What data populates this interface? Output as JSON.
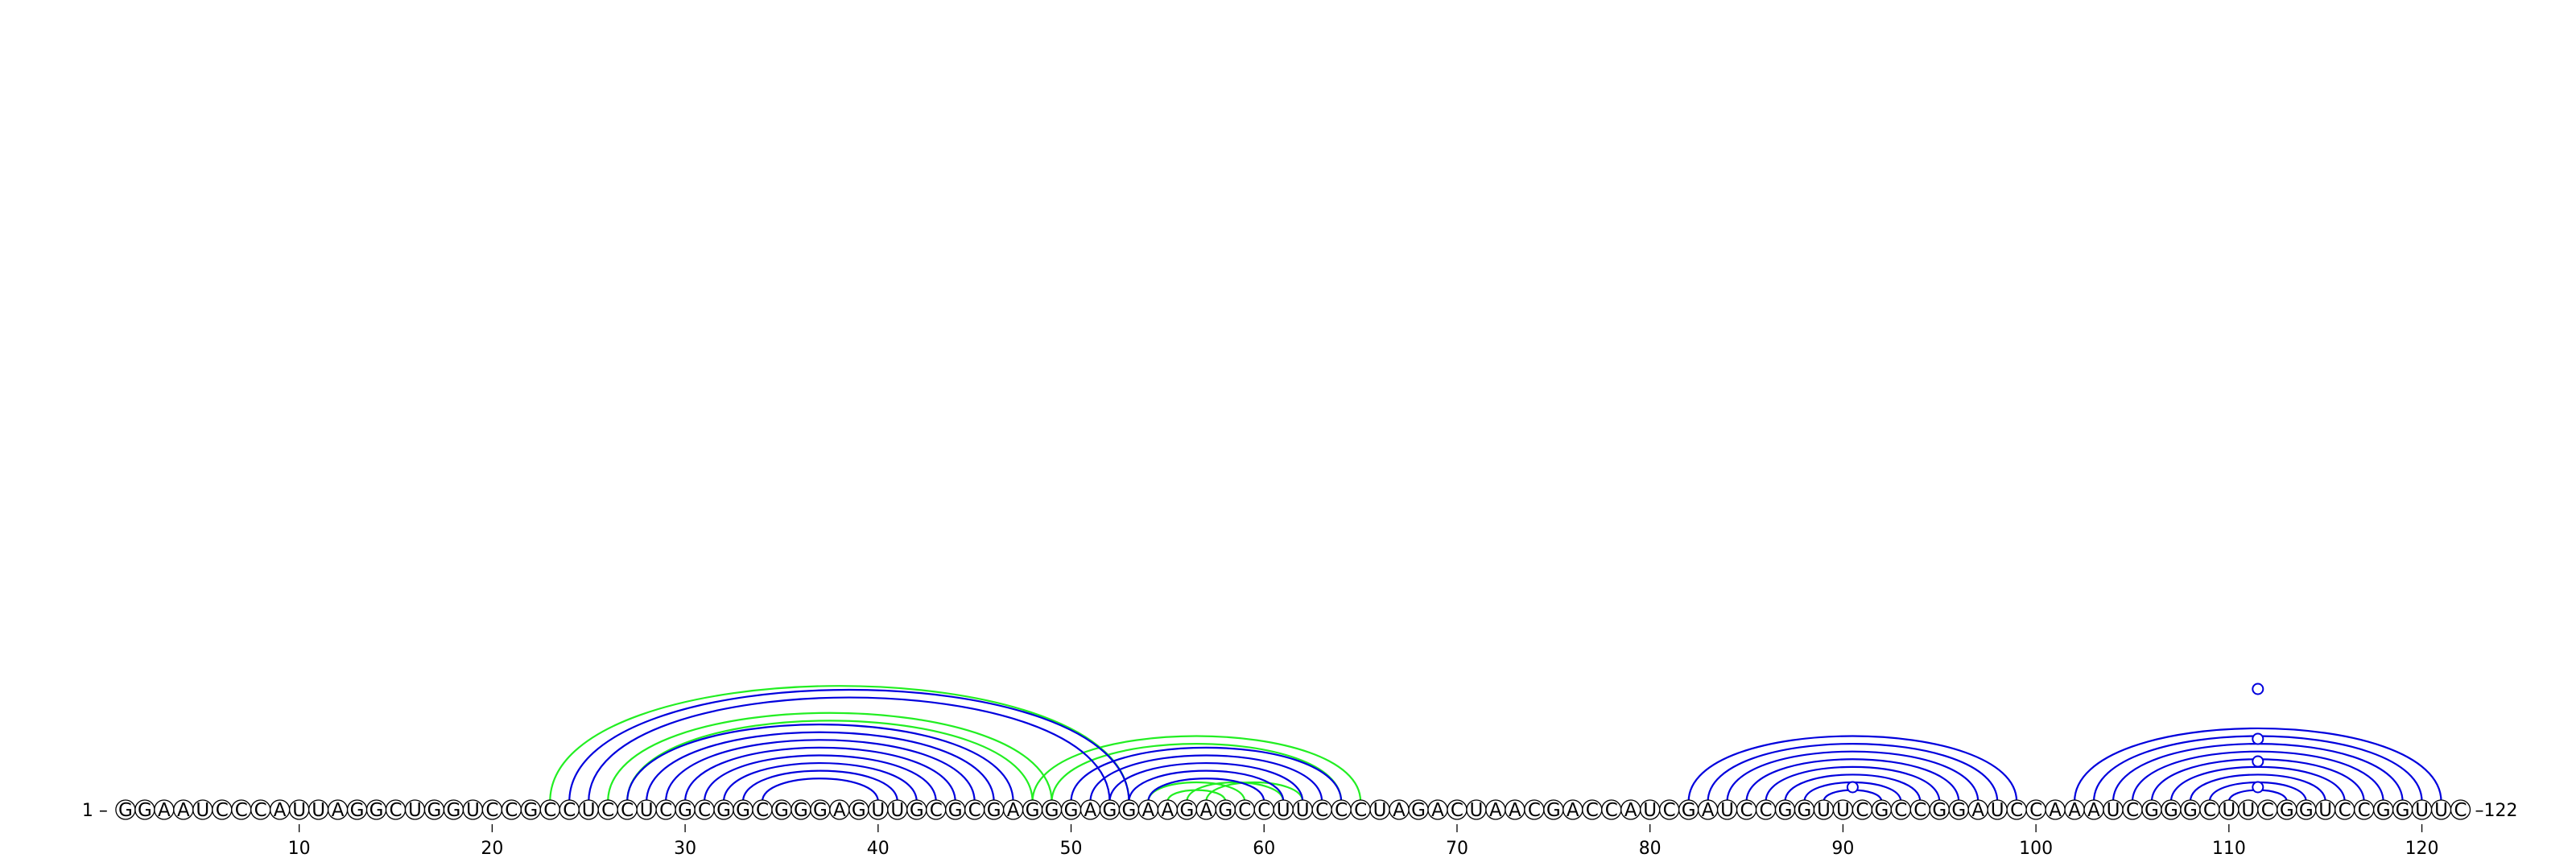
{
  "diagram": {
    "type": "rna-arc-diagram",
    "sequence": "GGAAUCCCAUUAGGCUGGUCCGCCUCCUCGCGGCGGGAGUUGCGCGAGGGAGGAAGAGCCUUCCCUAGACUAACGACCAUCGAUCCGGUUCGCCGGAUCCAAAUCGGGCUUCGGUCCGGUUC",
    "start_label": "1 –",
    "end_label": "–122",
    "ticks": [
      {
        "position": 10,
        "label": "10"
      },
      {
        "position": 20,
        "label": "20"
      },
      {
        "position": 30,
        "label": "30"
      },
      {
        "position": 40,
        "label": "40"
      },
      {
        "position": 50,
        "label": "50"
      },
      {
        "position": 60,
        "label": "60"
      },
      {
        "position": 70,
        "label": "70"
      },
      {
        "position": 80,
        "label": "80"
      },
      {
        "position": 90,
        "label": "90"
      },
      {
        "position": 100,
        "label": "100"
      },
      {
        "position": 110,
        "label": "110"
      },
      {
        "position": 120,
        "label": "120"
      }
    ],
    "colors": {
      "primary_pairs": "#0000dd",
      "alternative_pairs": "#22ee22",
      "nucleotide_fill": "#ffffff",
      "nucleotide_stroke": "#000000"
    },
    "pair_sets": [
      {
        "set": "primary",
        "color": "blue",
        "pairs": [
          [
            24,
            53
          ],
          [
            25,
            52
          ],
          [
            27,
            47
          ],
          [
            28,
            46
          ],
          [
            29,
            45
          ],
          [
            30,
            44
          ],
          [
            31,
            43
          ],
          [
            32,
            42
          ],
          [
            33,
            41
          ],
          [
            34,
            40
          ],
          [
            50,
            64
          ],
          [
            51,
            63
          ],
          [
            52,
            62
          ],
          [
            53,
            61
          ],
          [
            54,
            60
          ],
          [
            82,
            99
          ],
          [
            83,
            98
          ],
          [
            84,
            97
          ],
          [
            85,
            96
          ],
          [
            86,
            95
          ],
          [
            87,
            94
          ],
          [
            88,
            93
          ],
          [
            89,
            92
          ],
          [
            102,
            121
          ],
          [
            103,
            120
          ],
          [
            104,
            119
          ],
          [
            105,
            118
          ],
          [
            106,
            117
          ],
          [
            107,
            116
          ],
          [
            108,
            115
          ],
          [
            109,
            114
          ],
          [
            110,
            113
          ]
        ]
      },
      {
        "set": "alternative",
        "color": "green",
        "pairs": [
          [
            23,
            53
          ],
          [
            26,
            49
          ],
          [
            27,
            48
          ],
          [
            48,
            65
          ],
          [
            49,
            64
          ],
          [
            54,
            59
          ],
          [
            55,
            58
          ],
          [
            56,
            61
          ],
          [
            57,
            62
          ]
        ]
      }
    ],
    "pair_markers": [
      {
        "between": [
          90,
          91
        ],
        "color": "blue"
      },
      {
        "between": [
          111,
          112
        ],
        "color": "blue"
      }
    ]
  }
}
